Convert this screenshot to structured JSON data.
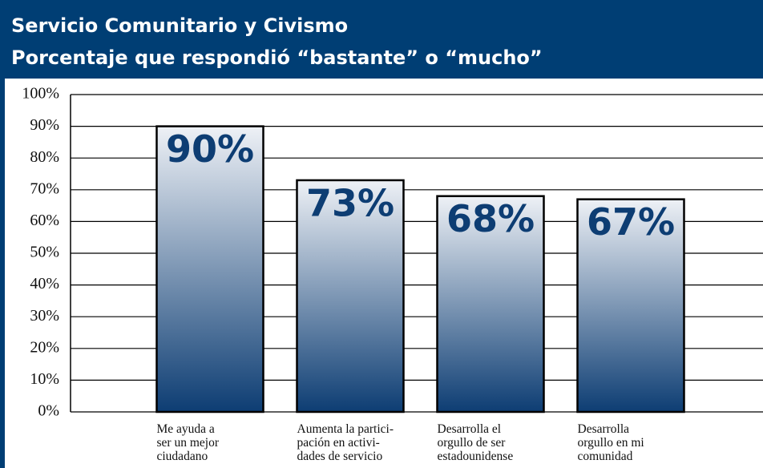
{
  "chart_data": {
    "type": "bar",
    "title": "Servicio Comunitario y Civismo",
    "subtitle": "Porcentaje que respondió “bastante” o “mucho”",
    "categories": [
      "Me ayuda a\nser un mejor\nciudadano",
      "Aumenta la partici-\npación en activi-\ndades de servicio",
      "Desarrolla el\norgullo de ser\nestadounidense",
      "Desarrolla\norgullo en mi\ncomunidad"
    ],
    "values": [
      90,
      73,
      68,
      67
    ],
    "value_labels": [
      "90%",
      "73%",
      "68%",
      "67%"
    ],
    "color": "#0d3d73",
    "ylim": [
      0,
      100
    ],
    "yticks": [
      {
        "value": 0,
        "label": "0%"
      },
      {
        "value": 10,
        "label": "10%"
      },
      {
        "value": 20,
        "label": "20%"
      },
      {
        "value": 30,
        "label": "30%"
      },
      {
        "value": 40,
        "label": "40%"
      },
      {
        "value": 50,
        "label": "50%"
      },
      {
        "value": 60,
        "label": "60%"
      },
      {
        "value": 70,
        "label": "70%"
      },
      {
        "value": 80,
        "label": "80%"
      },
      {
        "value": 90,
        "label": "90%"
      },
      {
        "value": 100,
        "label": "100%"
      }
    ],
    "grid": true
  }
}
